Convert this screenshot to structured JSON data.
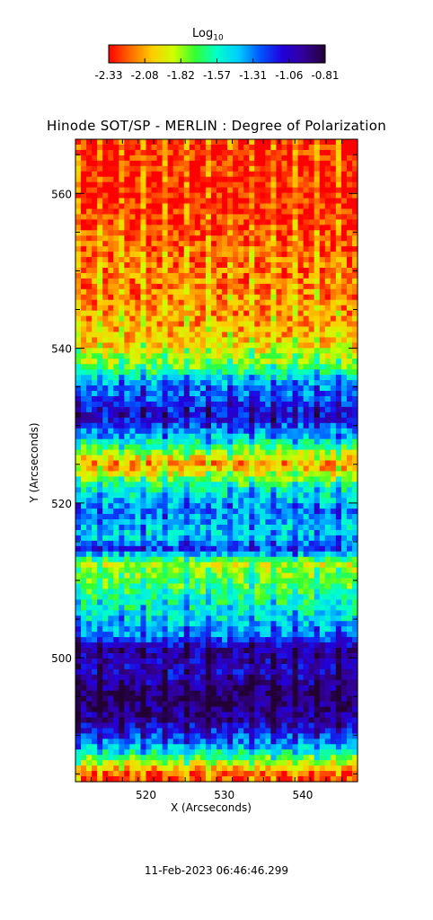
{
  "colorbar": {
    "title": "Log",
    "title_sub": "10",
    "ticks": [
      "-2.33",
      "-2.08",
      "-1.82",
      "-1.57",
      "-1.31",
      "-1.06",
      "-0.81"
    ],
    "colors": [
      "#ff0000",
      "#ff6a00",
      "#ffcc00",
      "#ccff00",
      "#33ff33",
      "#00ffcc",
      "#00ccff",
      "#0055ff",
      "#2200dd",
      "#330099",
      "#220033"
    ]
  },
  "chart_data": {
    "type": "heatmap",
    "title": "Hinode SOT/SP - MERLIN : Degree of Polarization",
    "xlabel": "X (Arcseconds)",
    "ylabel": "Y (Arcseconds)",
    "xlim": [
      511,
      547
    ],
    "ylim": [
      484,
      567
    ],
    "x_ticks": [
      520,
      530,
      540
    ],
    "y_ticks": [
      500,
      520,
      540,
      560
    ],
    "value_range": [
      -2.33,
      -0.81
    ],
    "num_scan_strips": 13,
    "y_profile": [
      {
        "y": 567,
        "v": -2.25
      },
      {
        "y": 560,
        "v": -2.28
      },
      {
        "y": 552,
        "v": -2.15
      },
      {
        "y": 545,
        "v": -2.1
      },
      {
        "y": 541,
        "v": -2.0
      },
      {
        "y": 538,
        "v": -1.75
      },
      {
        "y": 535,
        "v": -1.3
      },
      {
        "y": 531,
        "v": -1.05
      },
      {
        "y": 528,
        "v": -1.5
      },
      {
        "y": 525,
        "v": -2.1
      },
      {
        "y": 522,
        "v": -1.55
      },
      {
        "y": 519,
        "v": -1.3
      },
      {
        "y": 516,
        "v": -1.45
      },
      {
        "y": 514,
        "v": -1.2
      },
      {
        "y": 512,
        "v": -1.85
      },
      {
        "y": 509,
        "v": -1.65
      },
      {
        "y": 506,
        "v": -1.5
      },
      {
        "y": 503,
        "v": -1.3
      },
      {
        "y": 501,
        "v": -0.95
      },
      {
        "y": 498,
        "v": -1.05
      },
      {
        "y": 495,
        "v": -0.85
      },
      {
        "y": 492,
        "v": -0.95
      },
      {
        "y": 489,
        "v": -1.3
      },
      {
        "y": 487,
        "v": -1.7
      },
      {
        "y": 485,
        "v": -2.2
      }
    ]
  },
  "timestamp": "11-Feb-2023 06:46:46.299"
}
